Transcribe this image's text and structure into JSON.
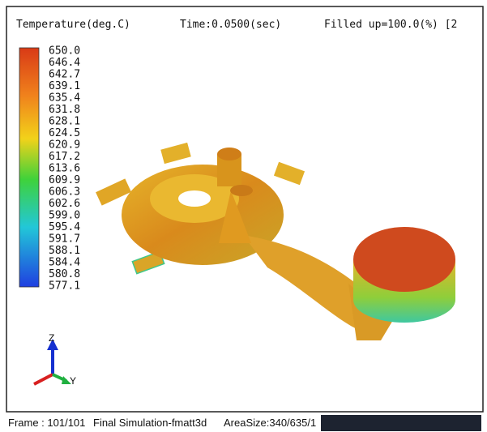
{
  "header": {
    "quantity": "Temperature(deg.C)",
    "time": "Time:0.0500(sec)",
    "filled": "Filled up=100.0(%) [2"
  },
  "legend": {
    "labels": [
      "650.0",
      "646.4",
      "642.7",
      "639.1",
      "635.4",
      "631.8",
      "628.1",
      "624.5",
      "620.9",
      "617.2",
      "613.6",
      "609.9",
      "606.3",
      "602.6",
      "599.0",
      "595.4",
      "591.7",
      "588.1",
      "584.4",
      "580.8",
      "577.1"
    ]
  },
  "axes": {
    "z": "Z",
    "y": "Y"
  },
  "footer": {
    "frame": "Frame : 101/101",
    "name": "Final Simulation-fmatt3d",
    "area": "AreaSize:340/635/1"
  }
}
